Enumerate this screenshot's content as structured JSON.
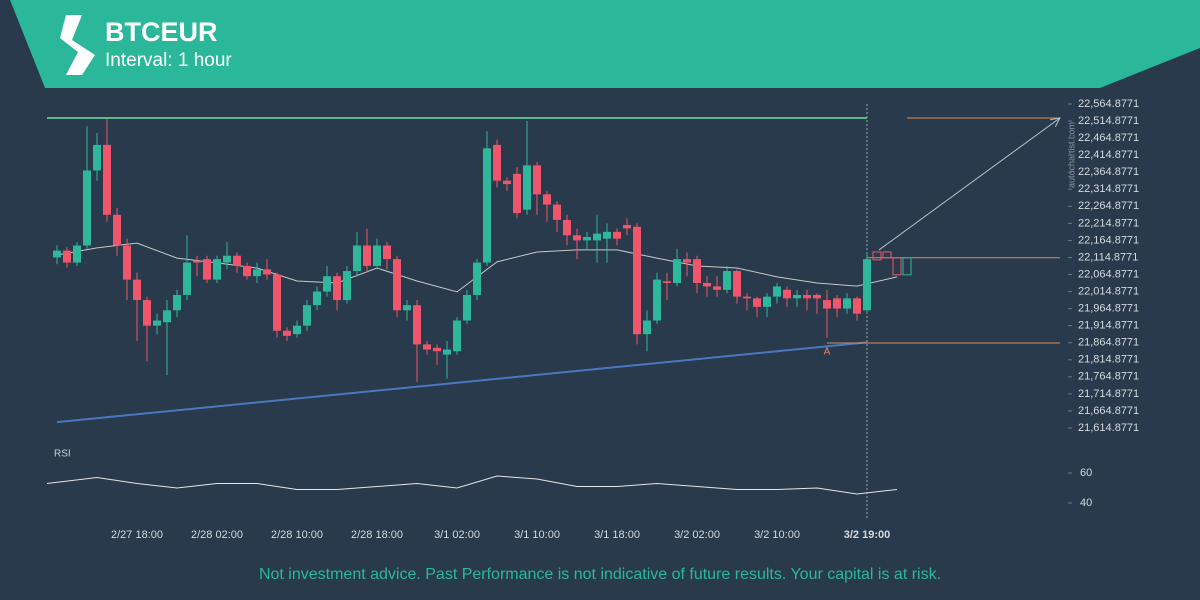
{
  "chart_data": {
    "type": "candlestick",
    "title": "BTCEUR",
    "subtitle": "Interval: 1 hour",
    "categories": [
      null,
      null,
      null,
      null,
      null,
      null,
      null,
      null,
      "2/27 18:00",
      null,
      null,
      null,
      null,
      null,
      null,
      null,
      "2/28 02:00",
      null,
      null,
      null,
      null,
      null,
      null,
      null,
      "2/28 10:00",
      null,
      null,
      null,
      null,
      null,
      null,
      null,
      "2/28 18:00",
      null,
      null,
      null,
      null,
      null,
      null,
      null,
      "3/1 02:00",
      null,
      null,
      null,
      null,
      null,
      null,
      null,
      "3/1 10:00",
      null,
      null,
      null,
      null,
      null,
      null,
      null,
      "3/1 18:00",
      null,
      null,
      null,
      null,
      null,
      null,
      null,
      "3/2 02:00",
      null,
      null,
      null,
      null,
      null,
      null,
      null,
      "3/2 10:00",
      null,
      null,
      null,
      null,
      null,
      null,
      null,
      null,
      "3/2 19:00"
    ],
    "open": [
      22115,
      22135,
      22100,
      22150,
      22370,
      22445,
      22240,
      22150,
      22050,
      21990,
      21915,
      21925,
      21960,
      22005,
      22105,
      22110,
      22050,
      22100,
      22120,
      22090,
      22060,
      22080,
      22065,
      21900,
      21890,
      21915,
      21975,
      22015,
      22060,
      21990,
      22075,
      22150,
      22090,
      22150,
      22110,
      21960,
      21975,
      21860,
      21850,
      21830,
      21840,
      21930,
      22005,
      22100,
      22445,
      22340,
      22360,
      22255,
      22385,
      22300,
      22270,
      22225,
      22180,
      22165,
      22165,
      22170,
      22190,
      22210,
      22205,
      21890,
      21930,
      22045,
      22040,
      22110,
      22110,
      22040,
      22030,
      22020,
      22075,
      22000,
      21995,
      21970,
      22000,
      22020,
      21995,
      22005,
      22005,
      21990,
      21995,
      21965,
      21995,
      21960
    ],
    "high": [
      22150,
      22145,
      22160,
      22500,
      22480,
      22520,
      22260,
      22170,
      22070,
      22000,
      21950,
      21990,
      22020,
      22180,
      22120,
      22120,
      22120,
      22160,
      22130,
      22100,
      22100,
      22110,
      22070,
      21910,
      21930,
      21990,
      22030,
      22090,
      22070,
      22090,
      22190,
      22200,
      22170,
      22160,
      22120,
      21990,
      21990,
      21870,
      21860,
      21870,
      21940,
      22020,
      22110,
      22485,
      22460,
      22350,
      22380,
      22515,
      22395,
      22310,
      22280,
      22240,
      22200,
      22190,
      22240,
      22215,
      22200,
      22230,
      22215,
      21960,
      22070,
      22070,
      22140,
      22130,
      22120,
      22060,
      22060,
      22090,
      22080,
      22010,
      22000,
      22010,
      22040,
      22030,
      22020,
      22020,
      22010,
      22020,
      22005,
      22010,
      22000,
      22130
    ],
    "low": [
      22095,
      22085,
      22090,
      22140,
      22340,
      22220,
      22120,
      21990,
      21870,
      21810,
      21890,
      21770,
      21940,
      21990,
      22060,
      22040,
      22040,
      22080,
      22070,
      22050,
      22040,
      22050,
      21880,
      21870,
      21880,
      21900,
      21960,
      22000,
      21960,
      21980,
      22060,
      22070,
      22080,
      22080,
      21940,
      21930,
      21750,
      21830,
      21800,
      21760,
      21830,
      21920,
      21990,
      22090,
      22320,
      22310,
      22230,
      22240,
      22240,
      22220,
      22190,
      22150,
      22110,
      22140,
      22100,
      22100,
      22150,
      22180,
      21860,
      21840,
      21920,
      21990,
      22030,
      22060,
      22010,
      22000,
      22000,
      22010,
      21980,
      21960,
      21940,
      21940,
      21980,
      21970,
      21970,
      21960,
      21950,
      21880,
      21940,
      21950,
      21930,
      21950
    ],
    "close": [
      22135,
      22100,
      22150,
      22370,
      22445,
      22240,
      22150,
      22050,
      21990,
      21915,
      21930,
      21960,
      22005,
      22100,
      22100,
      22050,
      22110,
      22120,
      22090,
      22060,
      22080,
      22065,
      21900,
      21885,
      21915,
      21975,
      22015,
      22060,
      21990,
      22075,
      22150,
      22090,
      22150,
      22110,
      21960,
      21975,
      21860,
      21845,
      21840,
      21845,
      21930,
      22005,
      22100,
      22435,
      22340,
      22330,
      22245,
      22385,
      22300,
      22270,
      22225,
      22180,
      22165,
      22175,
      22185,
      22190,
      22170,
      22200,
      21890,
      21930,
      22050,
      22040,
      22110,
      22100,
      22040,
      22030,
      22020,
      22075,
      22000,
      21995,
      21970,
      22000,
      22030,
      21995,
      22005,
      21995,
      21995,
      21965,
      21965,
      21995,
      21950,
      22110
    ],
    "up_color": "#2fb79c",
    "down_color": "#f0566b",
    "forecast": {
      "open": [
        22131,
        22131,
        22114,
        22064
      ],
      "close": [
        22108,
        22114,
        22064,
        22114
      ]
    },
    "moving_average": {
      "color": "#c9c9c9",
      "x": [
        0,
        4,
        8,
        12,
        16,
        20,
        24,
        28,
        32,
        36,
        40,
        44,
        48,
        52,
        56,
        60,
        64,
        68,
        72,
        76,
        80,
        84
      ],
      "values": [
        22122,
        22143,
        22157,
        22113,
        22099,
        22084,
        22046,
        22040,
        22084,
        22046,
        22014,
        22102,
        22131,
        22137,
        22137,
        22113,
        22090,
        22084,
        22058,
        22040,
        22031,
        22058
      ]
    },
    "resistance": {
      "color": "#5fb98c",
      "values": [
        22524,
        22524
      ]
    },
    "support": {
      "color": "#4a78c0",
      "values": [
        21632,
        21866
      ]
    },
    "levels": {
      "color": "#e08a55",
      "values": [
        22524,
        22114,
        21864
      ]
    },
    "forecast_arrow": [
      22137,
      22524
    ],
    "pattern_label": "A",
    "ylim": [
      21614.8771,
      22564.8771
    ],
    "yticks": [
      {
        "value": 21614.8771,
        "label": "21,614.8771"
      },
      {
        "value": 21664.8771,
        "label": "21,664.8771"
      },
      {
        "value": 21714.8771,
        "label": "21,714.8771"
      },
      {
        "value": 21764.8771,
        "label": "21,764.8771"
      },
      {
        "value": 21814.8771,
        "label": "21,814.8771"
      },
      {
        "value": 21864.8771,
        "label": "21,864.8771"
      },
      {
        "value": 21914.8771,
        "label": "21,914.8771"
      },
      {
        "value": 21964.8771,
        "label": "21,964.8771"
      },
      {
        "value": 22014.8771,
        "label": "22,014.8771"
      },
      {
        "value": 22064.8771,
        "label": "22,064.8771"
      },
      {
        "value": 22114.8771,
        "label": "22,114.8771"
      },
      {
        "value": 22164.8771,
        "label": "22,164.8771"
      },
      {
        "value": 22214.8771,
        "label": "22,214.8771"
      },
      {
        "value": 22264.8771,
        "label": "22,264.8771"
      },
      {
        "value": 22314.8771,
        "label": "22,314.8771"
      },
      {
        "value": 22364.8771,
        "label": "22,364.8771"
      },
      {
        "value": 22414.8771,
        "label": "22,414.8771"
      },
      {
        "value": 22464.8771,
        "label": "22,464.8771"
      },
      {
        "value": 22514.8771,
        "label": "22,514.8771"
      },
      {
        "value": 22564.8771,
        "label": "22,564.8771"
      }
    ],
    "rsi": {
      "label": "RSI",
      "color": "#e6e6e6",
      "ylim": [
        30,
        70
      ],
      "yticks": [
        40,
        60
      ],
      "x": [
        0,
        4,
        8,
        12,
        16,
        20,
        24,
        28,
        32,
        36,
        40,
        44,
        48,
        52,
        56,
        60,
        64,
        68,
        72,
        76,
        80,
        84
      ],
      "values": [
        53,
        57,
        53,
        50,
        53,
        53,
        49,
        49,
        51,
        53,
        50,
        58,
        56,
        51,
        51,
        53,
        51,
        49,
        49,
        50,
        46,
        49
      ]
    },
    "watermark": "autochartist.com",
    "disclaimer": "Not investment advice. Past Performance is not indicative of future results. Your capital is at risk."
  }
}
